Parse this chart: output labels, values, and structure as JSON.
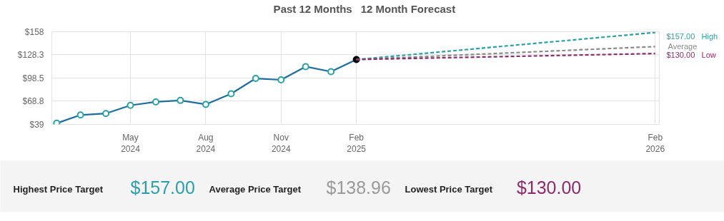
{
  "chart_data": [
    {
      "type": "line",
      "title": "Past 12 Months",
      "subtitle": "12 Month Forecast",
      "xlim": [
        "2024-01-26",
        "2026-02-06"
      ],
      "xticks": [
        {
          "value": "2024-05",
          "label": "May\n2024"
        },
        {
          "value": "2024-08",
          "label": "Aug\n2024"
        },
        {
          "value": "2024-11",
          "label": "Nov\n2024"
        },
        {
          "value": "2025-02",
          "label": "Feb\n2025"
        },
        {
          "value": "2026-02",
          "label": "Feb\n2026"
        }
      ],
      "ylim": [
        39,
        158
      ],
      "yticks": [
        {
          "value": 39,
          "label": "$39"
        },
        {
          "value": 68.8,
          "label": "$68.8"
        },
        {
          "value": 98.5,
          "label": "$98.5"
        },
        {
          "value": 128.3,
          "label": "$128.3"
        },
        {
          "value": 158,
          "label": "$158"
        }
      ],
      "grid": true,
      "series": [
        {
          "color": "#1f6c9e",
          "marker": "circle",
          "line_style": "solid",
          "x": [
            "2024-02",
            "2024-03",
            "2024-04",
            "2024-05",
            "2024-06",
            "2024-07",
            "2024-08",
            "2024-09",
            "2024-10",
            "2024-11",
            "2024-12",
            "2025-01",
            "2025-02"
          ],
          "values": [
            40.5,
            51.1,
            53.0,
            63.5,
            67.9,
            69.8,
            64.7,
            78.4,
            98.0,
            96.2,
            113.2,
            106.7,
            122.3
          ],
          "colors": [
            "#2aa0a0",
            "#2aa0a0",
            "#2aa0a0",
            "#2aa0a0",
            "#2aa0a0",
            "#2aa0a0",
            "#2aa0a0",
            "#2aa0a0",
            "#2aa0a0",
            "#2aa0a0",
            "#2aa0a0",
            "#2aa0a0",
            "#000000"
          ]
        },
        {
          "name": "High",
          "color": "#2a9fa8",
          "marker": "none",
          "line_style": "dashed",
          "x": [
            "2025-02",
            "2026-02"
          ],
          "values": [
            122.3,
            157
          ],
          "value_labels": [
            null,
            "$157.00"
          ]
        },
        {
          "name": "Average",
          "color": "#8a8a8a",
          "marker": "none",
          "line_style": "dashed",
          "x": [
            "2025-02",
            "2026-02"
          ],
          "values": [
            122.3,
            138.96
          ],
          "value_labels": [
            null,
            null
          ]
        },
        {
          "name": "Low",
          "color": "#8b2c6b",
          "marker": "none",
          "line_style": "dashed",
          "x": [
            "2025-02",
            "2026-02"
          ],
          "values": [
            122.3,
            130
          ],
          "value_labels": [
            null,
            "$130.00"
          ]
        }
      ]
    },
    {
      "type": "other",
      "annotations": [
        "Highest Price Target",
        "$157.00",
        "Average Price Target",
        "$138.96",
        "Lowest Price Target",
        "$130.00"
      ],
      "colors": [
        "#222222",
        "#2a9fa8",
        "#222222",
        "#9a9a9a",
        "#222222",
        "#8b2c6b"
      ]
    }
  ]
}
